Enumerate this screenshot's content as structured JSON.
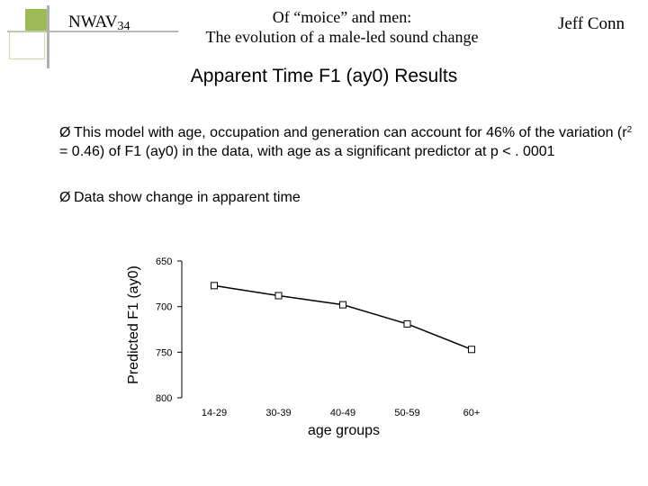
{
  "header": {
    "conference_main": "NWAV",
    "conference_sub": "34",
    "title_line1": "Of “moice” and men:",
    "title_line2": "The evolution of a male-led sound change",
    "author": "Jeff Conn"
  },
  "slide": {
    "heading": "Apparent Time F1 (ay0) Results",
    "bullet1_pre": "This model with age, occupation and generation can account for 46% of the variation (r",
    "bullet1_sup": "2",
    "bullet1_post": " = 0.46) of F1 (ay0) in the data, with age as a significant predictor at p < . 0001",
    "bullet2": "Data show change in apparent time",
    "bullet_marker": "Ø"
  },
  "chart_data": {
    "type": "line",
    "categories": [
      "14-29",
      "30-39",
      "40-49",
      "50-59",
      "60+"
    ],
    "series": [
      {
        "values": [
          677,
          688,
          698,
          719,
          747
        ]
      }
    ],
    "xlabel": "age groups",
    "ylabel": "Predicted F1 (ay0)",
    "ylim": [
      650,
      800
    ],
    "yticks": [
      650,
      700,
      750,
      800
    ],
    "y_inverted": true,
    "grid": false,
    "legend": "none",
    "marker": "hollow-square"
  }
}
